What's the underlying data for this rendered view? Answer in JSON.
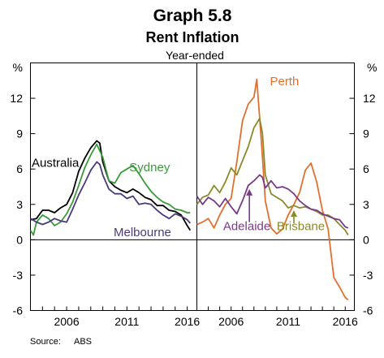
{
  "chart_data": {
    "type": "line",
    "title": "Graph 5.8",
    "subtitle": "Rent Inflation",
    "note": "Year-ended",
    "ylabel_left": "%",
    "ylabel_right": "%",
    "source_label": "Source:",
    "source": "ABS",
    "ylim": [
      -6,
      15
    ],
    "yticks": [
      -6,
      -3,
      0,
      3,
      6,
      9,
      12
    ],
    "xlim": [
      2003.0,
      2016.8
    ],
    "xticks": [
      2006,
      2011,
      2016
    ],
    "panels": [
      {
        "name": "left",
        "series": [
          {
            "name": "Australia",
            "color": "#000000",
            "x": [
              2003.0,
              2003.5,
              2004.0,
              2004.5,
              2005.0,
              2005.5,
              2006.0,
              2006.5,
              2007.0,
              2007.5,
              2008.0,
              2008.5,
              2008.75,
              2009.0,
              2009.5,
              2010.0,
              2010.5,
              2011.0,
              2011.5,
              2012.0,
              2012.5,
              2013.0,
              2013.5,
              2014.0,
              2014.5,
              2015.0,
              2015.5,
              2016.0,
              2016.25
            ],
            "y": [
              1.7,
              1.8,
              2.5,
              2.5,
              2.3,
              2.7,
              3.0,
              4.0,
              5.8,
              6.9,
              7.8,
              8.4,
              8.2,
              6.6,
              5.0,
              4.5,
              4.2,
              4.0,
              4.3,
              4.0,
              3.6,
              3.4,
              2.9,
              2.9,
              2.5,
              2.4,
              2.1,
              1.2,
              0.8
            ]
          },
          {
            "name": "Sydney",
            "color": "#3a9a3a",
            "x": [
              2003.0,
              2003.25,
              2003.5,
              2004.0,
              2004.5,
              2005.0,
              2005.5,
              2006.0,
              2006.5,
              2007.0,
              2007.5,
              2008.0,
              2008.5,
              2009.0,
              2009.5,
              2010.0,
              2010.5,
              2011.0,
              2011.5,
              2012.0,
              2012.5,
              2013.0,
              2013.5,
              2014.0,
              2014.5,
              2015.0,
              2015.5,
              2016.0,
              2016.25
            ],
            "y": [
              0.8,
              0.4,
              1.5,
              2.1,
              1.8,
              1.2,
              1.5,
              2.2,
              3.2,
              4.6,
              6.1,
              7.2,
              8.1,
              7.0,
              5.0,
              4.8,
              5.7,
              6.0,
              6.3,
              5.6,
              4.8,
              4.1,
              3.6,
              3.2,
              3.0,
              2.6,
              2.5,
              2.3,
              2.3
            ]
          },
          {
            "name": "Melbourne",
            "color": "#4b3a78",
            "x": [
              2003.0,
              2003.5,
              2004.0,
              2004.5,
              2005.0,
              2005.5,
              2006.0,
              2006.5,
              2007.0,
              2007.5,
              2008.0,
              2008.5,
              2008.75,
              2009.0,
              2009.5,
              2010.0,
              2010.5,
              2011.0,
              2011.5,
              2012.0,
              2012.5,
              2013.0,
              2013.5,
              2014.0,
              2014.5,
              2015.0,
              2015.5,
              2016.0,
              2016.25
            ],
            "y": [
              1.8,
              1.5,
              1.3,
              1.5,
              1.8,
              1.6,
              1.5,
              2.6,
              3.8,
              4.8,
              5.9,
              6.6,
              6.4,
              5.5,
              4.3,
              3.9,
              3.9,
              3.5,
              3.7,
              3.0,
              3.1,
              3.0,
              2.5,
              2.1,
              1.8,
              2.2,
              2.0,
              1.7,
              1.4
            ]
          }
        ],
        "labels": [
          {
            "text": "Australia",
            "color": "#000000",
            "x": 2003.1,
            "y": 6.2
          },
          {
            "text": "Sydney",
            "color": "#3a9a3a",
            "x": 2011.2,
            "y": 5.8
          },
          {
            "text": "Melbourne",
            "color": "#4b3a78",
            "x": 2009.9,
            "y": 0.3
          }
        ]
      },
      {
        "name": "right",
        "series": [
          {
            "name": "Perth",
            "color": "#e07030",
            "x": [
              2003.0,
              2003.5,
              2004.0,
              2004.5,
              2005.0,
              2005.5,
              2006.0,
              2006.5,
              2007.0,
              2007.5,
              2008.0,
              2008.25,
              2008.5,
              2008.75,
              2009.0,
              2009.5,
              2010.0,
              2010.5,
              2011.0,
              2011.5,
              2012.0,
              2012.5,
              2013.0,
              2013.5,
              2014.0,
              2014.5,
              2015.0,
              2015.5,
              2016.0,
              2016.25
            ],
            "y": [
              1.3,
              1.5,
              1.8,
              1.0,
              2.1,
              3.0,
              3.5,
              6.6,
              10.1,
              11.5,
              12.1,
              13.6,
              10.4,
              7.0,
              3.3,
              1.0,
              0.5,
              0.9,
              2.1,
              3.0,
              4.0,
              5.9,
              6.5,
              4.9,
              2.5,
              0.9,
              -3.2,
              -4.0,
              -4.9,
              -5.1
            ]
          },
          {
            "name": "Brisbane",
            "color": "#8a8a2a",
            "x": [
              2003.0,
              2003.5,
              2004.0,
              2004.5,
              2005.0,
              2005.5,
              2006.0,
              2006.5,
              2007.0,
              2007.5,
              2008.0,
              2008.5,
              2008.75,
              2009.0,
              2009.5,
              2010.0,
              2010.5,
              2011.0,
              2011.5,
              2012.0,
              2012.5,
              2013.0,
              2013.5,
              2014.0,
              2014.5,
              2015.0,
              2015.5,
              2016.0,
              2016.25
            ],
            "y": [
              3.0,
              3.6,
              3.8,
              4.6,
              4.0,
              4.9,
              6.1,
              5.5,
              6.7,
              7.9,
              9.5,
              10.3,
              9.0,
              5.5,
              3.9,
              3.6,
              3.3,
              2.7,
              2.9,
              2.7,
              2.8,
              2.6,
              2.4,
              2.1,
              2.1,
              1.8,
              1.3,
              0.8,
              0.4
            ]
          },
          {
            "name": "Adelaide",
            "color": "#7a3a8a",
            "x": [
              2003.0,
              2003.5,
              2004.0,
              2004.5,
              2005.0,
              2005.5,
              2006.0,
              2006.5,
              2007.0,
              2007.5,
              2008.0,
              2008.5,
              2008.75,
              2009.0,
              2009.5,
              2010.0,
              2010.5,
              2011.0,
              2011.5,
              2012.0,
              2012.5,
              2013.0,
              2013.5,
              2014.0,
              2014.5,
              2015.0,
              2015.5,
              2016.0,
              2016.25
            ],
            "y": [
              3.7,
              3.0,
              3.6,
              3.3,
              2.8,
              3.5,
              2.8,
              2.2,
              3.3,
              4.6,
              5.0,
              5.5,
              5.3,
              4.4,
              5.0,
              4.4,
              4.5,
              4.3,
              3.9,
              3.3,
              2.9,
              2.6,
              2.5,
              2.2,
              2.0,
              1.8,
              1.7,
              1.1,
              1.0
            ]
          }
        ],
        "labels": [
          {
            "text": "Perth",
            "color": "#e07030",
            "x": 2009.4,
            "y": 13.1
          },
          {
            "text": "Adelaide",
            "color": "#7a3a8a",
            "x": 2005.3,
            "y": 0.8
          },
          {
            "text": "Brisbane",
            "color": "#8a8a2a",
            "x": 2010.0,
            "y": 0.8
          }
        ],
        "arrows": [
          {
            "color": "#7a3a8a",
            "x": 2007.6,
            "y_from": 1.5,
            "y_to": 4.3
          },
          {
            "color": "#8a8a2a",
            "x": 2011.5,
            "y_from": 1.4,
            "y_to": 2.5
          }
        ]
      }
    ]
  }
}
